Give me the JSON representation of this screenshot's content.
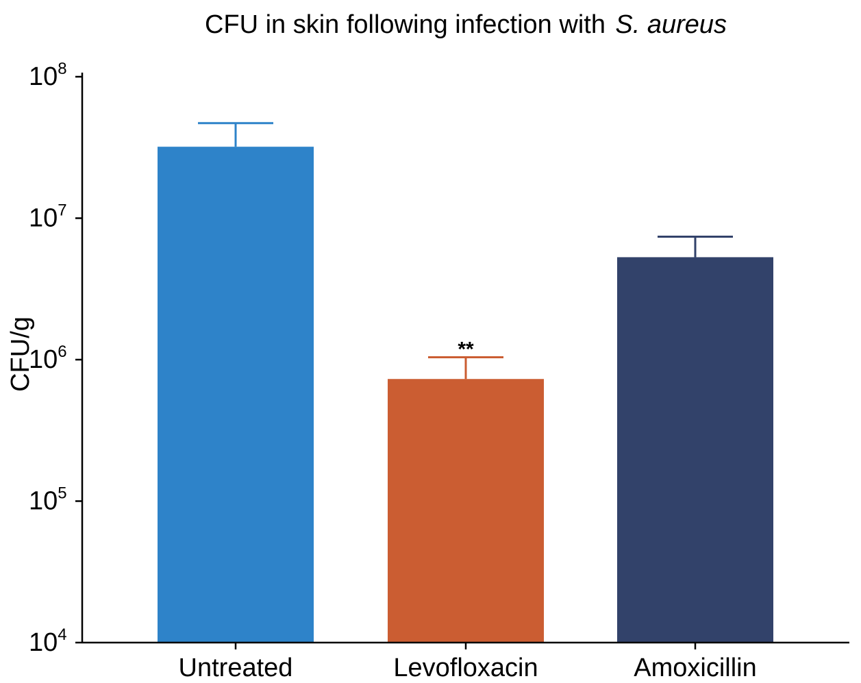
{
  "chart_data": {
    "type": "bar",
    "title": "CFU in skin following infection with",
    "title_italic": "S. aureus",
    "xlabel": "",
    "ylabel": "CFU/g",
    "yscale": "log",
    "ylim": [
      10000,
      100000000
    ],
    "yticks": [
      {
        "base": "10",
        "exp": "4",
        "value": 10000
      },
      {
        "base": "10",
        "exp": "5",
        "value": 100000
      },
      {
        "base": "10",
        "exp": "6",
        "value": 1000000
      },
      {
        "base": "10",
        "exp": "7",
        "value": 10000000
      },
      {
        "base": "10",
        "exp": "8",
        "value": 100000000
      }
    ],
    "categories": [
      "Untreated",
      "Levofloxacin",
      "Amoxicillin"
    ],
    "values": [
      32000000,
      730000,
      5300000
    ],
    "error_upper": [
      47000000,
      1040000,
      7400000
    ],
    "colors": [
      "#2e83c9",
      "#cb5d32",
      "#32426a"
    ],
    "annotations": [
      {
        "category": "Levofloxacin",
        "text": "**"
      }
    ],
    "grid": false,
    "legend": "none"
  }
}
